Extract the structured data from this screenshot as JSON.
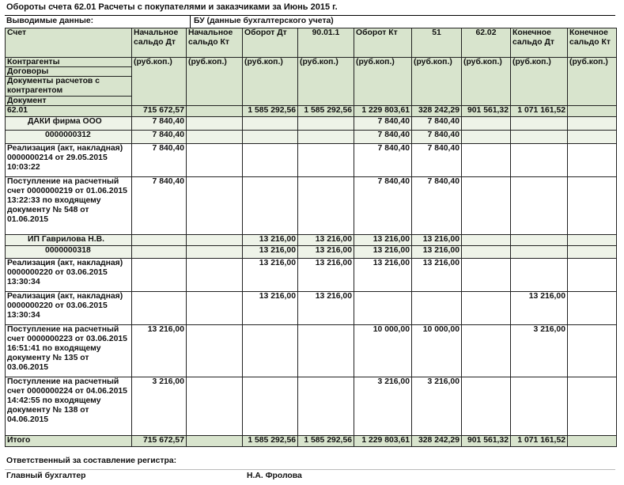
{
  "title": "Обороты счета 62.01 Расчеты с покупателями и заказчиками  за Июнь 2015 г.",
  "shown_data": {
    "label": "Выводимые данные:",
    "value": "БУ (данные бухгалтерского учета)"
  },
  "header": {
    "account": "Счет",
    "cols": [
      "Начальное сальдо Дт",
      "Начальное сальдо Кт",
      "Оборот Дт",
      "90.01.1",
      "Оборот Кт",
      "51",
      "62.02",
      "Конечное сальдо Дт",
      "Конечное сальдо Кт"
    ],
    "unit": "(руб.коп.)",
    "sub": [
      "Контрагенты",
      "Договоры",
      "Документы расчетов с контрагентом",
      "Документ"
    ]
  },
  "rows": [
    {
      "type": "total",
      "label": "62.01",
      "v": [
        "715 672,57",
        "",
        "1 585 292,56",
        "1 585 292,56",
        "1 229 803,61",
        "328 242,29",
        "901 561,32",
        "1 071 161,52",
        ""
      ]
    },
    {
      "type": "group",
      "label": "ДАКИ фирма ООО",
      "v": [
        "7 840,40",
        "",
        "",
        "",
        "7 840,40",
        "7 840,40",
        "",
        "",
        ""
      ]
    },
    {
      "type": "doc",
      "label": "0000000312",
      "v": [
        "7 840,40",
        "",
        "",
        "",
        "7 840,40",
        "7 840,40",
        "",
        "",
        ""
      ]
    },
    {
      "type": "item",
      "label": "Реализация (акт, накладная) 0000000214 от 29.05.2015 10:03:22",
      "v": [
        "7 840,40",
        "",
        "",
        "",
        "7 840,40",
        "7 840,40",
        "",
        "",
        ""
      ]
    },
    {
      "type": "item",
      "label": "Поступление на расчетный счет 0000000219 от 01.06.2015 13:22:33 по входящему документу № 548 от 01.06.2015",
      "v": [
        "7 840,40",
        "",
        "",
        "",
        "7 840,40",
        "7 840,40",
        "",
        "",
        ""
      ]
    },
    {
      "type": "group",
      "label": "ИП Гаврилова Н.В.",
      "v": [
        "",
        "",
        "13 216,00",
        "13 216,00",
        "13 216,00",
        "13 216,00",
        "",
        "",
        ""
      ]
    },
    {
      "type": "doc",
      "label": "0000000318",
      "v": [
        "",
        "",
        "13 216,00",
        "13 216,00",
        "13 216,00",
        "13 216,00",
        "",
        "",
        ""
      ]
    },
    {
      "type": "item",
      "label": "Реализация (акт, накладная) 0000000220 от 03.06.2015 13:30:34",
      "v": [
        "",
        "",
        "13 216,00",
        "13 216,00",
        "13 216,00",
        "13 216,00",
        "",
        "",
        ""
      ]
    },
    {
      "type": "item",
      "label": "Реализация (акт, накладная) 0000000220 от 03.06.2015 13:30:34",
      "v": [
        "",
        "",
        "13 216,00",
        "13 216,00",
        "",
        "",
        "",
        "13 216,00",
        ""
      ]
    },
    {
      "type": "item",
      "label": "Поступление на расчетный счет 0000000223 от 03.06.2015 16:51:41 по входящему документу № 135 от 03.06.2015",
      "v": [
        "13 216,00",
        "",
        "",
        "",
        "10 000,00",
        "10 000,00",
        "",
        "3 216,00",
        ""
      ]
    },
    {
      "type": "item",
      "label": "Поступление на расчетный счет 0000000224 от 04.06.2015 14:42:55 по входящему документу № 138 от 04.06.2015",
      "v": [
        "3 216,00",
        "",
        "",
        "",
        "3 216,00",
        "3 216,00",
        "",
        "",
        ""
      ]
    },
    {
      "type": "total",
      "label": "Итого",
      "v": [
        "715 672,57",
        "",
        "1 585 292,56",
        "1 585 292,56",
        "1 229 803,61",
        "328 242,29",
        "901 561,32",
        "1 071 161,52",
        ""
      ]
    }
  ],
  "footer": {
    "responsible": "Ответственный за составление регистра:",
    "accountant_label": "Главный бухгалтер",
    "accountant_name": "Н.А. Фролова"
  }
}
